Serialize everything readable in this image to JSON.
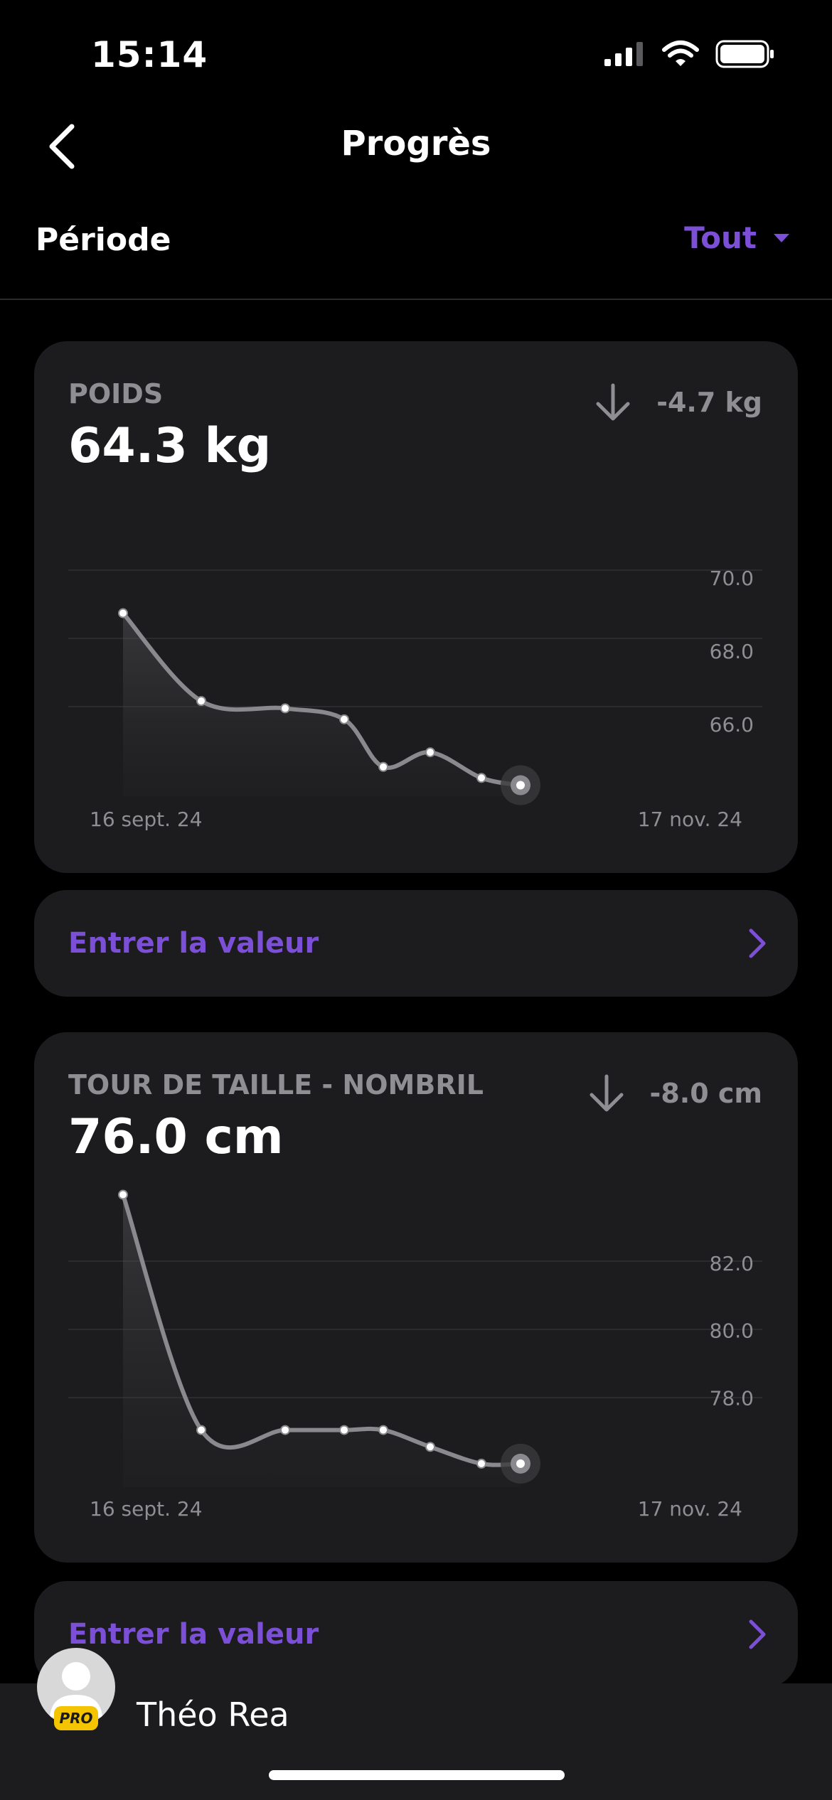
{
  "status_bar": {
    "time": "15:14"
  },
  "nav": {
    "title": "Progrès"
  },
  "period": {
    "label": "Période",
    "value": "Tout"
  },
  "colors": {
    "accent": "#7b4fd6",
    "card": "#1c1c1e",
    "muted": "#8e8e93",
    "pro_badge": "#f5c400"
  },
  "cards": [
    {
      "label": "POIDS",
      "value": "64.3 kg",
      "delta": "-4.7 kg",
      "delta_direction": "down",
      "action_label": "Entrer la valeur",
      "start_date": "16 sept. 24",
      "end_date": "17 nov. 24"
    },
    {
      "label": "TOUR DE TAILLE - NOMBRIL",
      "value": "76.0 cm",
      "delta": "-8.0 cm",
      "delta_direction": "down",
      "action_label": "Entrer la valeur",
      "start_date": "16 sept. 24",
      "end_date": "17 nov. 24"
    }
  ],
  "chart_data": [
    {
      "type": "area",
      "title": "POIDS",
      "x": [
        "16 sept. 24",
        "",
        "",
        "",
        "",
        "",
        "",
        "17 nov. 24"
      ],
      "values": [
        69.0,
        66.6,
        66.4,
        66.1,
        64.8,
        65.2,
        64.5,
        64.3
      ],
      "ylim": [
        64.0,
        70.7
      ],
      "yticks": [
        "70.0",
        "68.0",
        "66.0"
      ],
      "grid": true
    },
    {
      "type": "area",
      "title": "TOUR DE TAILLE - NOMBRIL",
      "x": [
        "16 sept. 24",
        "",
        "",
        "",
        "",
        "",
        "",
        "17 nov. 24"
      ],
      "values": [
        84.0,
        77.0,
        77.0,
        77.0,
        77.0,
        76.5,
        76.0,
        76.0
      ],
      "ylim": [
        75.3,
        82.7
      ],
      "yticks": [
        "82.0",
        "80.0",
        "78.0"
      ],
      "grid": true
    }
  ],
  "user": {
    "name": "Théo Rea",
    "badge": "PRO"
  }
}
